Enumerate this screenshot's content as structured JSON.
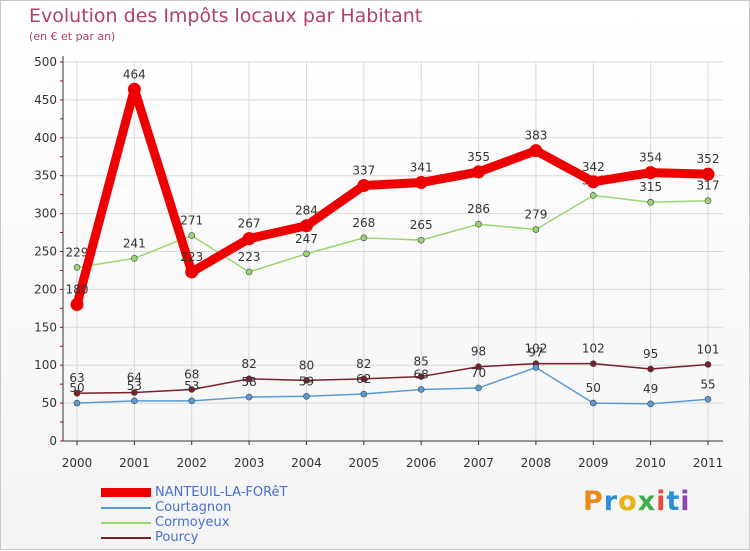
{
  "title": "Evolution des Impôts locaux par Habitant",
  "subtitle": "(en € et par an)",
  "logo_text": "Proxiti",
  "logo_colors": [
    "#e98a1a",
    "#2a8fd8",
    "#e9b21a",
    "#3fae49",
    "#e84a3a",
    "#2a8fd8",
    "#8c4ab0"
  ],
  "chart_data": {
    "type": "line",
    "title": "Evolution des Impôts locaux par Habitant",
    "subtitle": "(en € et par an)",
    "xlabel": "",
    "ylabel": "",
    "ylim": [
      0,
      500
    ],
    "yticks": [
      0,
      50,
      100,
      150,
      200,
      250,
      300,
      350,
      400,
      450,
      500
    ],
    "categories": [
      "2000",
      "2001",
      "2002",
      "2003",
      "2004",
      "2005",
      "2006",
      "2007",
      "2008",
      "2009",
      "2010",
      "2011"
    ],
    "series": [
      {
        "name": "Pourcy",
        "color": "#7a1f2a",
        "values": [
          63,
          64,
          68,
          82,
          80,
          82,
          85,
          98,
          102,
          102,
          95,
          101
        ],
        "labels": [
          "63",
          "64",
          "68",
          "82",
          "80",
          "82",
          "85",
          "98",
          "102",
          "102",
          "95",
          "101"
        ]
      },
      {
        "name": "Courtagnon",
        "color": "#5b9bd5",
        "values": [
          50,
          53,
          53,
          58,
          59,
          62,
          68,
          70,
          97,
          50,
          49,
          55
        ],
        "labels": [
          "50",
          "53",
          "53",
          "58",
          "59",
          "62",
          "68",
          "70",
          "97",
          "50",
          "49",
          "55"
        ]
      },
      {
        "name": "Cormoyeux",
        "color": "#9ad66f",
        "values": [
          229,
          241,
          271,
          223,
          247,
          268,
          265,
          286,
          279,
          324,
          315,
          317
        ],
        "labels": [
          "229",
          "241",
          "271",
          "223",
          "247",
          "268",
          "265",
          "286",
          "279",
          "324",
          "315",
          "317"
        ]
      },
      {
        "name": "NANTEUIL-LA-FORêT",
        "color": "#ee0000",
        "values": [
          180,
          464,
          223,
          267,
          284,
          337,
          341,
          355,
          383,
          342,
          354,
          352
        ],
        "labels": [
          "180",
          "464",
          "223",
          "267",
          "284",
          "337",
          "341",
          "355",
          "383",
          "342",
          "354",
          "352"
        ]
      }
    ],
    "legend": [
      "NANTEUIL-LA-FORêT",
      "Courtagnon",
      "Cormoyeux",
      "Pourcy"
    ],
    "legend_position": "bottom-left",
    "grid": true
  }
}
